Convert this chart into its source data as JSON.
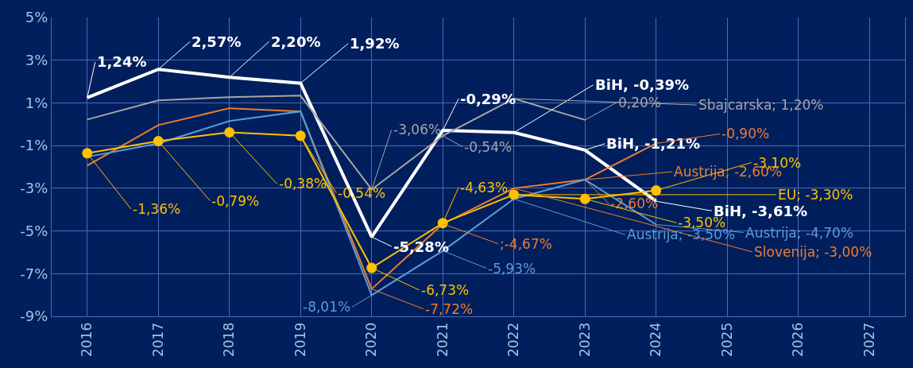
{
  "chart_data": {
    "type": "line",
    "categories": [
      "2016",
      "2017",
      "2018",
      "2019",
      "2020",
      "2021",
      "2022",
      "2023",
      "2024",
      "2025",
      "2026",
      "2027"
    ],
    "series": [
      {
        "color": "#ffffff",
        "values": [
          1.24,
          2.57,
          2.2,
          1.92,
          -5.28,
          -0.29,
          -0.39,
          -1.21,
          -3.61,
          null,
          null,
          null
        ]
      },
      {
        "color": "#a6a6a6",
        "values": [
          0.22,
          1.12,
          1.27,
          1.34,
          -3.06,
          -0.54,
          1.2,
          0.2,
          null,
          null,
          null,
          null
        ]
      },
      {
        "color": "#ed7d31",
        "values": [
          -1.94,
          -0.04,
          0.75,
          0.6,
          -7.72,
          -4.67,
          -3.0,
          -2.6,
          -0.9,
          null,
          null,
          null
        ]
      },
      {
        "color": "#5b9bd5",
        "values": [
          -1.53,
          -0.9,
          0.15,
          0.6,
          -8.01,
          -5.93,
          -3.5,
          -2.6,
          -4.7,
          null,
          null,
          null
        ]
      },
      {
        "color": "#ffc000",
        "marker": "circle",
        "values": [
          -1.36,
          -0.79,
          -0.38,
          -0.54,
          -6.73,
          -4.63,
          -3.3,
          -3.5,
          -3.1,
          null,
          null,
          null
        ]
      }
    ],
    "ylim": [
      -9,
      5
    ],
    "yticks": [
      {
        "value": -9,
        "label": "-9%"
      },
      {
        "value": -7,
        "label": "-7%"
      },
      {
        "value": -5,
        "label": "-5%"
      },
      {
        "value": -3,
        "label": "-3%"
      },
      {
        "value": -1,
        "label": "-1%"
      },
      {
        "value": 1,
        "label": "1%"
      },
      {
        "value": 3,
        "label": "3%"
      },
      {
        "value": 5,
        "label": "5%"
      }
    ],
    "grid": true,
    "annotations": [
      {
        "text": "1,24%",
        "x": "2016",
        "y": 1.24
      },
      {
        "text": "2,57%",
        "x": "2017",
        "y": 2.57
      },
      {
        "text": "2,20%",
        "x": "2018",
        "y": 2.2
      },
      {
        "text": "1,92%",
        "x": "2019",
        "y": 1.92
      },
      {
        "text": "-5,28%",
        "x": "2020",
        "y": -5.28
      },
      {
        "text": "-0,29%",
        "x": "2021",
        "y": -0.29
      },
      {
        "text": "BiH, -0,39%",
        "x": "2022",
        "y": -0.39
      },
      {
        "text": "BiH, -1,21%",
        "x": "2023",
        "y": -1.21
      },
      {
        "text": "BiH, -3,61%",
        "x": "2024",
        "y": -3.61
      },
      {
        "text": "-3,06%",
        "x": "2020",
        "y": -3.06
      },
      {
        "text": "-0,54%",
        "x": "2021",
        "y": -0.54
      },
      {
        "text": "Sbajcarska; 1,20%",
        "x": "2022",
        "y": 1.2
      },
      {
        "text": "0,20%",
        "x": "2023",
        "y": 0.2
      },
      {
        "text": "-7,72%",
        "x": "2020",
        "y": -7.72
      },
      {
        "text": ";-4,67%",
        "x": "2021",
        "y": -4.67
      },
      {
        "text": "Slovenija; -3,00%",
        "x": "2022",
        "y": -3.0
      },
      {
        "text": "-2,60%",
        "x": "2023",
        "y": -2.6
      },
      {
        "text": "-0,90%",
        "x": "2024",
        "y": -0.9
      },
      {
        "text": "-8,01%",
        "x": "2020",
        "y": -8.01
      },
      {
        "text": "-5,93%",
        "x": "2021",
        "y": -5.93
      },
      {
        "text": "Austrija; -3,50%",
        "x": "2022",
        "y": -3.5
      },
      {
        "text": "Austrija; -2,60%",
        "x": "2023",
        "y": -2.6
      },
      {
        "text": "Austrija; -4,70%",
        "x": "2024",
        "y": -4.7
      },
      {
        "text": "-1,36%",
        "x": "2016",
        "y": -1.36
      },
      {
        "text": "-0,79%",
        "x": "2017",
        "y": -0.79
      },
      {
        "text": "-0,38%",
        "x": "2018",
        "y": -0.38
      },
      {
        "text": "-0,54%",
        "x": "2019",
        "y": -0.54
      },
      {
        "text": "-6,73%",
        "x": "2020",
        "y": -6.73
      },
      {
        "text": "-4,63%",
        "x": "2021",
        "y": -4.63
      },
      {
        "text": "EU; -3,30%",
        "x": "2022",
        "y": -3.3
      },
      {
        "text": "-3,50%",
        "x": "2023",
        "y": -3.5
      },
      {
        "text": "-3,10%",
        "x": "2024",
        "y": -3.1
      }
    ]
  }
}
